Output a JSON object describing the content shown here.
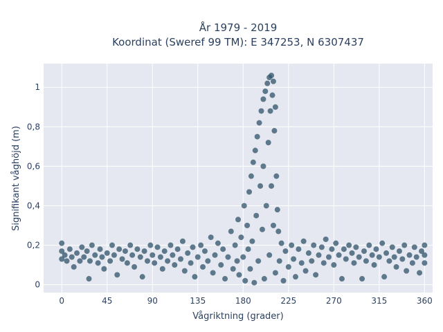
{
  "chart_data": {
    "type": "scatter",
    "title_line1": "År 1979 - 2019",
    "title_line2": "Koordinat (Sweref 99 TM): E 347253, N 6307437",
    "xlabel": "Vågriktning (grader)",
    "ylabel": "Signifikant våghöjd (m)",
    "xlim": [
      -18,
      368
    ],
    "ylim": [
      -0.04,
      1.12
    ],
    "x_ticks": [
      {
        "value": 0,
        "label": "0"
      },
      {
        "value": 45,
        "label": "45"
      },
      {
        "value": 90,
        "label": "90"
      },
      {
        "value": 135,
        "label": "135"
      },
      {
        "value": 180,
        "label": "180"
      },
      {
        "value": 225,
        "label": "225"
      },
      {
        "value": 270,
        "label": "270"
      },
      {
        "value": 315,
        "label": "315"
      },
      {
        "value": 360,
        "label": "360"
      }
    ],
    "y_ticks": [
      {
        "value": 0,
        "label": "0"
      },
      {
        "value": 0.2,
        "label": "0,2"
      },
      {
        "value": 0.4,
        "label": "0,4"
      },
      {
        "value": 0.6,
        "label": "0,6"
      },
      {
        "value": 0.8,
        "label": "0,8"
      },
      {
        "value": 1,
        "label": "1"
      }
    ],
    "grid": true,
    "colors": {
      "marker": "#2f5369",
      "plot_bg": "#e5e8f0",
      "grid": "#ffffff",
      "text": "#2a3f5f"
    },
    "points": [
      [
        0,
        0.17
      ],
      [
        0,
        0.13
      ],
      [
        0,
        0.21
      ],
      [
        3,
        0.15
      ],
      [
        5,
        0.12
      ],
      [
        8,
        0.18
      ],
      [
        10,
        0.14
      ],
      [
        12,
        0.09
      ],
      [
        15,
        0.16
      ],
      [
        18,
        0.12
      ],
      [
        20,
        0.19
      ],
      [
        22,
        0.14
      ],
      [
        25,
        0.17
      ],
      [
        27,
        0.03
      ],
      [
        28,
        0.12
      ],
      [
        30,
        0.2
      ],
      [
        33,
        0.15
      ],
      [
        36,
        0.11
      ],
      [
        38,
        0.18
      ],
      [
        40,
        0.14
      ],
      [
        42,
        0.08
      ],
      [
        45,
        0.16
      ],
      [
        48,
        0.12
      ],
      [
        50,
        0.2
      ],
      [
        52,
        0.15
      ],
      [
        55,
        0.05
      ],
      [
        57,
        0.18
      ],
      [
        60,
        0.13
      ],
      [
        63,
        0.17
      ],
      [
        65,
        0.11
      ],
      [
        68,
        0.2
      ],
      [
        70,
        0.15
      ],
      [
        72,
        0.09
      ],
      [
        75,
        0.18
      ],
      [
        78,
        0.14
      ],
      [
        80,
        0.04
      ],
      [
        82,
        0.17
      ],
      [
        85,
        0.12
      ],
      [
        88,
        0.2
      ],
      [
        90,
        0.15
      ],
      [
        92,
        0.11
      ],
      [
        95,
        0.19
      ],
      [
        98,
        0.14
      ],
      [
        100,
        0.08
      ],
      [
        102,
        0.17
      ],
      [
        105,
        0.12
      ],
      [
        108,
        0.2
      ],
      [
        110,
        0.15
      ],
      [
        112,
        0.1
      ],
      [
        115,
        0.18
      ],
      [
        118,
        0.13
      ],
      [
        120,
        0.22
      ],
      [
        122,
        0.07
      ],
      [
        125,
        0.16
      ],
      [
        128,
        0.11
      ],
      [
        130,
        0.19
      ],
      [
        132,
        0.04
      ],
      [
        135,
        0.14
      ],
      [
        138,
        0.2
      ],
      [
        140,
        0.09
      ],
      [
        142,
        0.17
      ],
      [
        145,
        0.12
      ],
      [
        148,
        0.24
      ],
      [
        150,
        0.06
      ],
      [
        152,
        0.15
      ],
      [
        155,
        0.21
      ],
      [
        158,
        0.1
      ],
      [
        160,
        0.18
      ],
      [
        162,
        0.03
      ],
      [
        165,
        0.14
      ],
      [
        168,
        0.27
      ],
      [
        170,
        0.08
      ],
      [
        172,
        0.2
      ],
      [
        174,
        0.12
      ],
      [
        175,
        0.33
      ],
      [
        176,
        0.05
      ],
      [
        178,
        0.24
      ],
      [
        180,
        0.14
      ],
      [
        181,
        0.4
      ],
      [
        182,
        0.02
      ],
      [
        184,
        0.3
      ],
      [
        185,
        0.18
      ],
      [
        186,
        0.47
      ],
      [
        187,
        0.08
      ],
      [
        188,
        0.55
      ],
      [
        189,
        0.22
      ],
      [
        190,
        0.62
      ],
      [
        191,
        0.01
      ],
      [
        192,
        0.68
      ],
      [
        193,
        0.35
      ],
      [
        194,
        0.75
      ],
      [
        195,
        0.12
      ],
      [
        196,
        0.82
      ],
      [
        197,
        0.5
      ],
      [
        198,
        0.88
      ],
      [
        199,
        0.28
      ],
      [
        200,
        0.94
      ],
      [
        200,
        0.6
      ],
      [
        201,
        0.03
      ],
      [
        202,
        0.98
      ],
      [
        203,
        0.4
      ],
      [
        204,
        1.02
      ],
      [
        205,
        0.72
      ],
      [
        206,
        1.05
      ],
      [
        206,
        0.15
      ],
      [
        207,
        0.88
      ],
      [
        208,
        1.06
      ],
      [
        208,
        0.5
      ],
      [
        209,
        0.96
      ],
      [
        210,
        1.03
      ],
      [
        210,
        0.3
      ],
      [
        211,
        0.78
      ],
      [
        212,
        0.9
      ],
      [
        212,
        0.06
      ],
      [
        213,
        0.55
      ],
      [
        214,
        0.38
      ],
      [
        215,
        0.27
      ],
      [
        216,
        0.12
      ],
      [
        218,
        0.21
      ],
      [
        220,
        0.02
      ],
      [
        222,
        0.17
      ],
      [
        225,
        0.09
      ],
      [
        228,
        0.2
      ],
      [
        230,
        0.13
      ],
      [
        232,
        0.04
      ],
      [
        235,
        0.18
      ],
      [
        238,
        0.11
      ],
      [
        240,
        0.22
      ],
      [
        242,
        0.07
      ],
      [
        245,
        0.16
      ],
      [
        248,
        0.12
      ],
      [
        250,
        0.2
      ],
      [
        252,
        0.05
      ],
      [
        255,
        0.15
      ],
      [
        258,
        0.19
      ],
      [
        260,
        0.11
      ],
      [
        262,
        0.23
      ],
      [
        265,
        0.14
      ],
      [
        268,
        0.18
      ],
      [
        270,
        0.1
      ],
      [
        272,
        0.21
      ],
      [
        275,
        0.15
      ],
      [
        278,
        0.03
      ],
      [
        280,
        0.18
      ],
      [
        282,
        0.13
      ],
      [
        285,
        0.2
      ],
      [
        288,
        0.16
      ],
      [
        290,
        0.11
      ],
      [
        292,
        0.19
      ],
      [
        295,
        0.14
      ],
      [
        298,
        0.03
      ],
      [
        300,
        0.17
      ],
      [
        302,
        0.12
      ],
      [
        305,
        0.2
      ],
      [
        308,
        0.15
      ],
      [
        310,
        0.1
      ],
      [
        312,
        0.18
      ],
      [
        315,
        0.14
      ],
      [
        318,
        0.21
      ],
      [
        320,
        0.04
      ],
      [
        322,
        0.16
      ],
      [
        325,
        0.12
      ],
      [
        328,
        0.19
      ],
      [
        330,
        0.14
      ],
      [
        332,
        0.09
      ],
      [
        335,
        0.17
      ],
      [
        338,
        0.13
      ],
      [
        340,
        0.2
      ],
      [
        342,
        0.07
      ],
      [
        345,
        0.15
      ],
      [
        348,
        0.11
      ],
      [
        350,
        0.19
      ],
      [
        352,
        0.14
      ],
      [
        355,
        0.06
      ],
      [
        357,
        0.17
      ],
      [
        360,
        0.15
      ],
      [
        360,
        0.11
      ],
      [
        360,
        0.2
      ]
    ]
  }
}
